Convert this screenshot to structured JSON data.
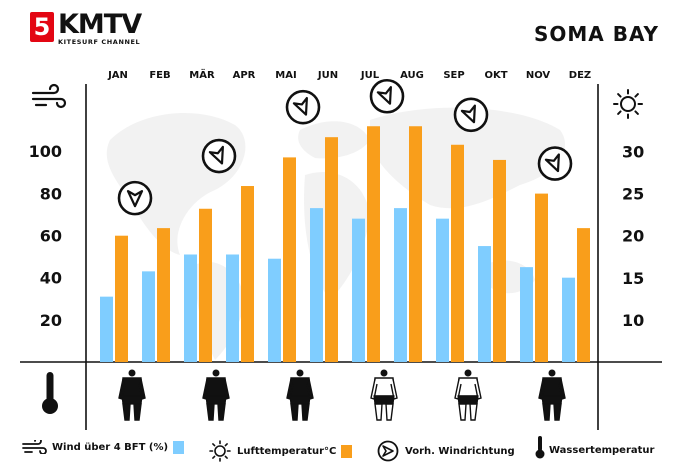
{
  "brand": {
    "name": "KMTV",
    "badge": "5",
    "subtitle": "KITESURF CHANNEL"
  },
  "location": "SOMA BAY",
  "colors": {
    "wind": "#7fcdff",
    "temp": "#f99e1b",
    "ink": "#111111",
    "map": "#ececec"
  },
  "icons": {
    "left_axis": "wind-icon",
    "right_axis": "sun-icon",
    "water": "thermometer-icon",
    "direction": "wind-direction-icon",
    "wetsuit": "wetsuit-icon"
  },
  "chart_data": {
    "type": "bar",
    "categories": [
      "JAN",
      "FEB",
      "MÄR",
      "APR",
      "MAI",
      "JUN",
      "JUL",
      "AUG",
      "SEP",
      "OKT",
      "NOV",
      "DEZ"
    ],
    "series": [
      {
        "name": "Wind über 4 BFT (%)",
        "axis": "left",
        "values": [
          31,
          43,
          51,
          51,
          49,
          73,
          68,
          73,
          68,
          55,
          45,
          40
        ]
      },
      {
        "name": "Lufttemperatur °C",
        "axis": "right",
        "values": [
          20,
          20.9,
          23.2,
          25.9,
          29.3,
          31.7,
          33,
          33,
          30.8,
          29,
          25,
          20.9
        ]
      }
    ],
    "yaxis_left": {
      "ticks": [
        20,
        40,
        60,
        80,
        100
      ]
    },
    "yaxis_right": {
      "ticks": [
        10,
        15,
        20,
        25,
        30
      ]
    },
    "wind_direction": [
      {
        "month": "JAN",
        "direction": "N"
      },
      {
        "month": "MÄR",
        "direction": "NNW"
      },
      {
        "month": "MAI",
        "direction": "NNW"
      },
      {
        "month": "JUL",
        "direction": "NNW"
      },
      {
        "month": "SEP",
        "direction": "NNW"
      },
      {
        "month": "NOV",
        "direction": "NNW"
      }
    ],
    "wetsuits": [
      {
        "month": "JAN",
        "type": "full"
      },
      {
        "month": "MÄR",
        "type": "full"
      },
      {
        "month": "MAI",
        "type": "full"
      },
      {
        "month": "JUL",
        "type": "shorty"
      },
      {
        "month": "SEP",
        "type": "shorty"
      },
      {
        "month": "NOV",
        "type": "full"
      }
    ],
    "grid": false
  },
  "legend": {
    "wind": "Wind über 4 BFT (%)",
    "temp": "Lufttemperatur°C",
    "direction": "Vorh. Windrichtung",
    "water": "Wassertemperatur"
  }
}
